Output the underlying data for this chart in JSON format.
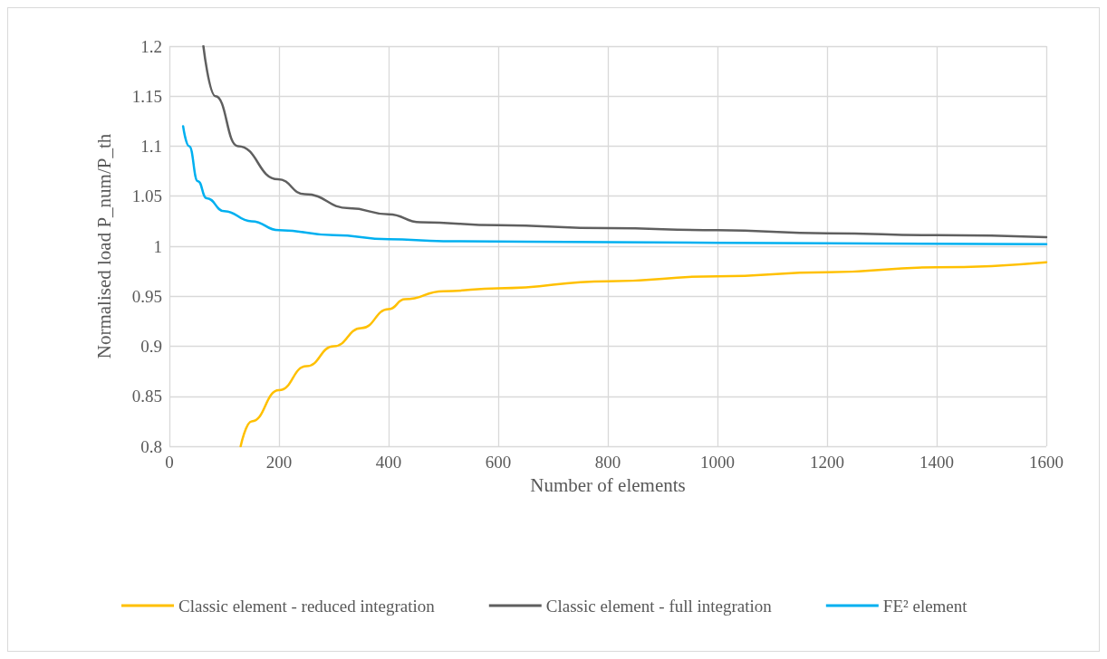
{
  "chart_data": {
    "type": "line",
    "xlabel": "Number of elements",
    "ylabel": "Normalised load P_num/P_th",
    "xlim": [
      0,
      1600
    ],
    "xticks": [
      0,
      200,
      400,
      600,
      800,
      1000,
      1200,
      1400,
      1600
    ],
    "ylim": [
      0.8,
      1.2
    ],
    "yticks": [
      0.8,
      0.85,
      0.9,
      0.95,
      1,
      1.05,
      1.1,
      1.15,
      1.2
    ],
    "grid": true,
    "legend": "bottom",
    "marker": "none",
    "line_style": "solid",
    "series": [
      {
        "name": "Classic element - reduced integration",
        "color": "#ffc000",
        "x": [
          130,
          150,
          200,
          250,
          300,
          350,
          400,
          430,
          500,
          600,
          800,
          1000,
          1200,
          1400,
          1600
        ],
        "values": [
          0.8,
          0.825,
          0.856,
          0.88,
          0.9,
          0.918,
          0.937,
          0.947,
          0.955,
          0.958,
          0.965,
          0.97,
          0.974,
          0.979,
          0.984
        ]
      },
      {
        "name": "Classic element - full integration",
        "color": "#5f5f5f",
        "x": [
          62,
          84,
          125,
          198,
          247,
          328,
          400,
          458,
          600,
          800,
          1000,
          1200,
          1400,
          1600
        ],
        "values": [
          1.2,
          1.15,
          1.1,
          1.067,
          1.052,
          1.038,
          1.032,
          1.024,
          1.021,
          1.018,
          1.016,
          1.013,
          1.011,
          1.009
        ]
      },
      {
        "name": "FE² element",
        "color": "#00b0f0",
        "x": [
          25,
          36,
          52,
          68,
          100,
          150,
          200,
          300,
          400,
          500,
          800,
          1200,
          1600
        ],
        "values": [
          1.12,
          1.1,
          1.065,
          1.048,
          1.035,
          1.025,
          1.016,
          1.011,
          1.007,
          1.005,
          1.004,
          1.003,
          1.002
        ]
      }
    ]
  }
}
